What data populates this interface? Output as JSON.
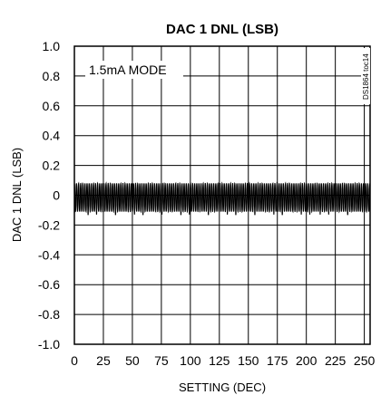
{
  "chart_data": {
    "type": "line",
    "title": "DAC 1 DNL (LSB)",
    "xlabel": "SETTING (DEC)",
    "ylabel": "DAC 1 DNL (LSB)",
    "xlim": [
      0,
      255
    ],
    "ylim": [
      -1.0,
      1.0
    ],
    "x_ticks": [
      0,
      25,
      50,
      75,
      100,
      125,
      150,
      175,
      200,
      225,
      250
    ],
    "x_tick_labels": [
      "0",
      "25",
      "50",
      "75",
      "100",
      "125",
      "150",
      "175",
      "200",
      "225",
      "250"
    ],
    "y_ticks": [
      1.0,
      0.8,
      0.6,
      0.4,
      0.2,
      0,
      -0.2,
      -0.4,
      -0.6,
      -0.8,
      -1.0
    ],
    "y_tick_labels": [
      "1.0",
      "0.8",
      "0.6",
      "0.4",
      "0.2",
      "0",
      "-0.2",
      "-0.4",
      "-0.6",
      "-0.8",
      "-1.0"
    ],
    "grid": true,
    "annotation": "1.5mA MODE",
    "side_label": "DS1864 toc14",
    "series": [
      {
        "name": "",
        "color": "#000000",
        "x_start": 0,
        "x_end": 255,
        "peak_max": 0.08,
        "trough_min": -0.14,
        "trough_typical": -0.11
      }
    ]
  }
}
